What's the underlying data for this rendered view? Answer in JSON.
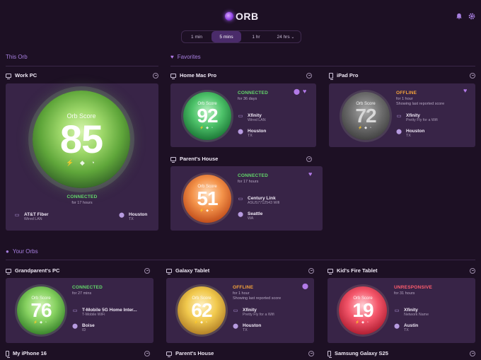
{
  "header": {
    "logo_text": "ORB"
  },
  "time_range": {
    "options": [
      "1 min",
      "5 mins",
      "1 hr",
      "24 hrs"
    ],
    "selected": "5 mins"
  },
  "sections": {
    "this_orb": "This Orb",
    "favorites": "Favorites",
    "your_orbs": "Your Orbs"
  },
  "orb_label": "Orb Score",
  "cards": {
    "work_pc": {
      "name": "Work PC",
      "score": "85",
      "status": "CONNECTED",
      "duration": "for 17 hours",
      "isp": "AT&T Fiber",
      "conn": "Wired LAN",
      "city": "Houston",
      "region": "TX"
    },
    "home_mac": {
      "name": "Home Mac Pro",
      "score": "92",
      "status": "CONNECTED",
      "duration": "for 36 days",
      "isp": "Xfinity",
      "conn": "Wired LAN",
      "city": "Houston",
      "region": "TX"
    },
    "ipad": {
      "name": "iPad Pro",
      "score": "72",
      "status": "OFFLINE",
      "duration": "for 1 hour",
      "note": "Showing last reported score",
      "isp": "Xfinity",
      "conn": "Pretty Fly for a Wifi",
      "city": "Houston",
      "region": "TX"
    },
    "parents_house": {
      "name": "Parent's House",
      "score": "51",
      "status": "CONNECTED",
      "duration": "for 17 hours",
      "isp": "Century Link",
      "conn": "ASUS7712543 Wifi",
      "city": "Seattle",
      "region": "WA"
    },
    "grandparents": {
      "name": "Grandparent's PC",
      "score": "76",
      "status": "CONNECTED",
      "duration": "for 27 mins",
      "isp": "T-Mobile 5G Home Inter...",
      "conn": "T-Mobile WiFi",
      "city": "Boise",
      "region": "ID"
    },
    "galaxy_tablet": {
      "name": "Galaxy Tablet",
      "score": "62",
      "status": "OFFLINE",
      "duration": "for 1 hour",
      "note": "Showing last reported score",
      "isp": "Xfinity",
      "conn": "Pretty Fly for a Wifi",
      "city": "Houston",
      "region": "TX"
    },
    "kids_fire": {
      "name": "Kid's Fire Tablet",
      "score": "19",
      "status": "UNRESPONSIVE",
      "duration": "for 31 hours",
      "isp": "Xfinity",
      "conn": "Network Name",
      "city": "Austin",
      "region": "TX"
    }
  },
  "bottom_row": [
    "My iPhone 16",
    "Parent's House",
    "Samsung Galaxy S25"
  ],
  "colors": {
    "connected": "#63d86a",
    "offline": "#f5a33a",
    "unresponsive": "#ff5d6e",
    "accent": "#a77fe0"
  }
}
